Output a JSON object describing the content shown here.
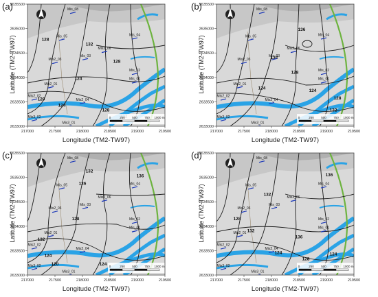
{
  "common": {
    "y_axis_label": "Latitude (TM2-TW97)",
    "x_axis_label": "Longitude (TM2-TW97)",
    "y_ticks": [
      "2635500",
      "2635000",
      "2634500",
      "2634000",
      "2633500",
      "2633000"
    ],
    "x_ticks": [
      "217000",
      "217500",
      "218000",
      "218500",
      "219000",
      "219500"
    ],
    "wells": [
      {
        "label": "Mis_08"
      },
      {
        "label": "Mis_05"
      },
      {
        "label": "Mis_04"
      },
      {
        "label": "Mis2_06"
      },
      {
        "label": "Mis_03"
      },
      {
        "label": "Mis2_03"
      },
      {
        "label": "Mis_02"
      },
      {
        "label": "Mis_01"
      },
      {
        "label": "Mis2_01"
      },
      {
        "label": "Mis2_02"
      },
      {
        "label": "Mis2_04"
      },
      {
        "label": "Mis3_02"
      },
      {
        "label": "Mis3_01"
      }
    ],
    "scale_bar": {
      "labels": [
        "0",
        "250",
        "500",
        "750",
        "1000 m"
      ]
    },
    "colors": {
      "river": "#2aa3e6",
      "road": "#6db33f",
      "contour": "#1a1a1a",
      "well": "#1a37b8",
      "background": "#d9d9d9"
    }
  },
  "panels": [
    {
      "letter": "(a)",
      "contour_labels": [
        "128",
        "132",
        "128",
        "124",
        "120",
        "124",
        "128",
        "132"
      ]
    },
    {
      "letter": "(b)",
      "contour_labels": [
        "136",
        "132",
        "128",
        "124",
        "124",
        "128",
        "132"
      ]
    },
    {
      "letter": "(c)",
      "contour_labels": [
        "132",
        "136",
        "136",
        "128",
        "132",
        "124",
        "120",
        "124"
      ]
    },
    {
      "letter": "(d)",
      "contour_labels": [
        "136",
        "132",
        "128",
        "132",
        "136",
        "128",
        "124",
        "124"
      ]
    }
  ]
}
